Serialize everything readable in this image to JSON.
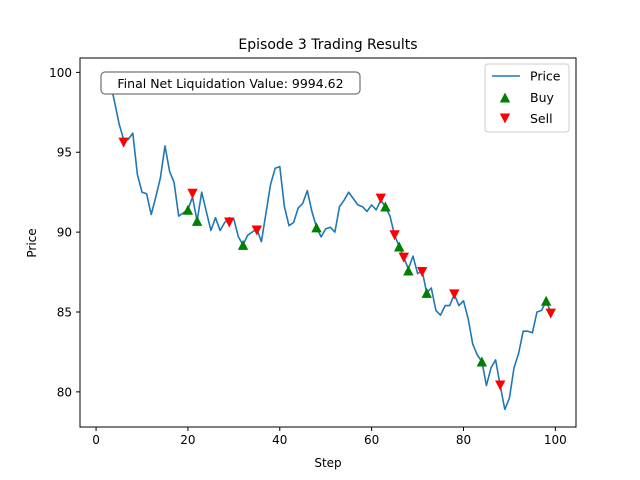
{
  "colors": {
    "price_line": "#1f77b4",
    "buy_marker": "#008000",
    "sell_marker": "#ff0000",
    "axes": "#000000",
    "annotation_border": "#555555"
  },
  "chart_data": {
    "type": "line",
    "title": "Episode 3 Trading Results",
    "xlabel": "Step",
    "ylabel": "Price",
    "xlim": [
      -3.5,
      104.5
    ],
    "ylim": [
      77.8,
      100.9
    ],
    "xticks": [
      0,
      20,
      40,
      60,
      80,
      100
    ],
    "yticks": [
      80,
      85,
      90,
      95,
      100
    ],
    "grid": false,
    "legend_position": "top-right",
    "annotation": "Final Net Liquidation Value: 9994.62",
    "price": {
      "name": "Price",
      "x": [
        1,
        2,
        3,
        4,
        5,
        6,
        7,
        8,
        9,
        10,
        11,
        12,
        13,
        14,
        15,
        16,
        17,
        18,
        19,
        20,
        21,
        22,
        23,
        24,
        25,
        26,
        27,
        28,
        29,
        30,
        31,
        32,
        33,
        34,
        35,
        36,
        37,
        38,
        39,
        40,
        41,
        42,
        43,
        44,
        45,
        46,
        47,
        48,
        49,
        50,
        51,
        52,
        53,
        54,
        55,
        56,
        57,
        58,
        59,
        60,
        61,
        62,
        63,
        64,
        65,
        66,
        67,
        68,
        69,
        70,
        71,
        72,
        73,
        74,
        75,
        76,
        77,
        78,
        79,
        80,
        81,
        82,
        83,
        84,
        85,
        86,
        87,
        88,
        89,
        90,
        91,
        92,
        93,
        94,
        95,
        96,
        97,
        98,
        99
      ],
      "y": [
        99.1,
        99.6,
        99.5,
        98.2,
        96.8,
        95.8,
        95.8,
        96.2,
        93.6,
        92.5,
        92.4,
        91.1,
        92.2,
        93.4,
        95.4,
        93.8,
        93.1,
        91.0,
        91.2,
        91.4,
        92.2,
        90.7,
        92.5,
        91.3,
        90.1,
        90.9,
        90.1,
        90.6,
        90.9,
        90.8,
        89.7,
        89.2,
        89.8,
        90.0,
        90.2,
        89.4,
        91.2,
        93.0,
        94.0,
        94.1,
        91.6,
        90.4,
        90.6,
        91.5,
        91.8,
        92.6,
        91.3,
        90.3,
        89.7,
        90.2,
        90.3,
        90.0,
        91.6,
        92.0,
        92.5,
        92.1,
        91.7,
        91.6,
        91.3,
        91.7,
        91.4,
        92.0,
        91.6,
        91.0,
        89.8,
        89.1,
        88.4,
        87.7,
        88.5,
        87.4,
        87.6,
        86.2,
        86.5,
        85.1,
        84.8,
        85.4,
        85.4,
        86.1,
        85.4,
        85.7,
        84.6,
        83.0,
        82.3,
        81.9,
        80.4,
        81.5,
        82.0,
        80.4,
        78.9,
        79.6,
        81.5,
        82.4,
        83.8,
        83.8,
        83.7,
        85.0,
        85.1,
        85.7,
        85.0
      ]
    },
    "buys": {
      "name": "Buy",
      "x": [
        20,
        22,
        32,
        48,
        63,
        66,
        68,
        72,
        84,
        98
      ],
      "y": [
        91.4,
        90.7,
        89.2,
        90.3,
        91.6,
        89.1,
        87.6,
        86.2,
        81.9,
        85.7
      ]
    },
    "sells": {
      "name": "Sell",
      "x": [
        6,
        21,
        29,
        35,
        62,
        65,
        67,
        71,
        78,
        88,
        99
      ],
      "y": [
        95.6,
        92.4,
        90.6,
        90.1,
        92.1,
        89.8,
        88.4,
        87.5,
        86.1,
        80.4,
        84.9
      ]
    }
  }
}
